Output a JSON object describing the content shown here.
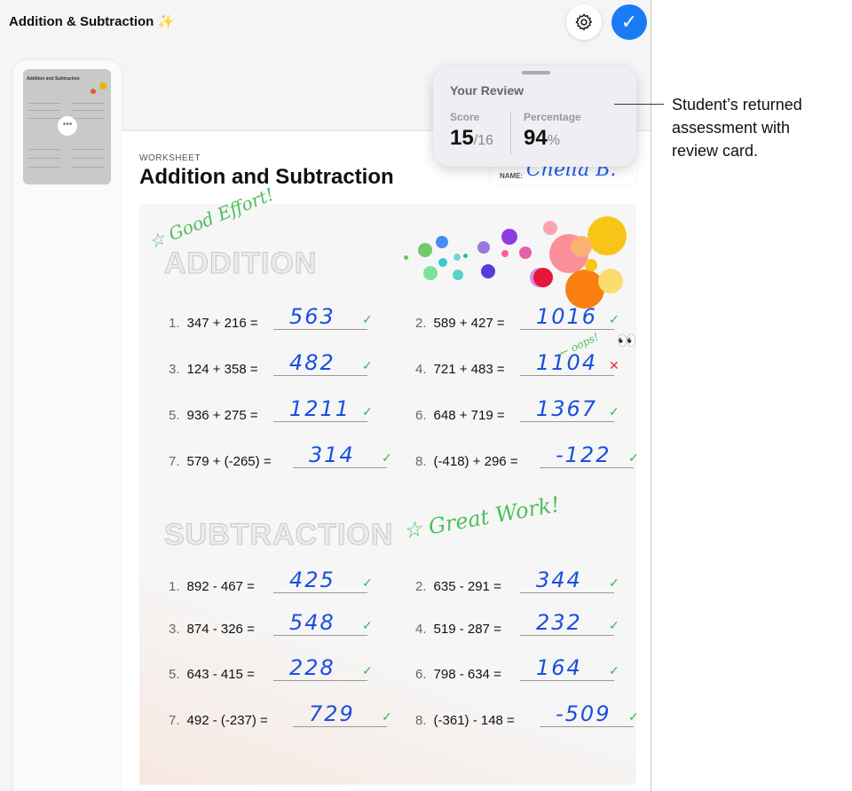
{
  "app": {
    "title": "Addition & Subtraction ✨",
    "settings_icon": "gear-icon",
    "done_icon": "checkmark-icon",
    "accent": "#1a7cf5"
  },
  "sidebar": {
    "thumbnail_title": "Addition and Subtraction",
    "more_label": "•••"
  },
  "worksheet": {
    "label": "WORKSHEET",
    "title": "Addition and Subtraction",
    "name_label": "NAME:",
    "name_value": "Chella B.",
    "addition_heading": "ADDITION",
    "subtraction_heading": "SUBTRACTION",
    "notes": {
      "good_effort": "☆ Good Effort!",
      "great_work": "☆ Great Work!",
      "oops": "← oops!",
      "eyes": "👀"
    },
    "addition": [
      {
        "n": "1.",
        "q": "347 + 216 =",
        "a": "563",
        "correct": true
      },
      {
        "n": "2.",
        "q": "589 + 427 =",
        "a": "1016",
        "correct": true
      },
      {
        "n": "3.",
        "q": "124 + 358 =",
        "a": "482",
        "correct": true
      },
      {
        "n": "4.",
        "q": "721 + 483 =",
        "a": "1104",
        "correct": false
      },
      {
        "n": "5.",
        "q": "936 + 275 =",
        "a": "1211",
        "correct": true
      },
      {
        "n": "6.",
        "q": "648 + 719 =",
        "a": "1367",
        "correct": true
      },
      {
        "n": "7.",
        "q": "579 + (-265) =",
        "a": "314",
        "correct": true
      },
      {
        "n": "8.",
        "q": "(-418) + 296 =",
        "a": "-122",
        "correct": true
      }
    ],
    "subtraction": [
      {
        "n": "1.",
        "q": "892 - 467 =",
        "a": "425",
        "correct": true
      },
      {
        "n": "2.",
        "q": "635 - 291 =",
        "a": "344",
        "correct": true
      },
      {
        "n": "3.",
        "q": "874 - 326 =",
        "a": "548",
        "correct": true
      },
      {
        "n": "4.",
        "q": "519 - 287 =",
        "a": "232",
        "correct": true
      },
      {
        "n": "5.",
        "q": "643 - 415 =",
        "a": "228",
        "correct": true
      },
      {
        "n": "6.",
        "q": "798 - 634 =",
        "a": "164",
        "correct": true
      },
      {
        "n": "7.",
        "q": "492 - (-237) =",
        "a": "729",
        "correct": true
      },
      {
        "n": "8.",
        "q": "(-361) - 148 =",
        "a": "-509",
        "correct": true
      }
    ]
  },
  "review": {
    "title": "Your Review",
    "score_label": "Score",
    "score": "15",
    "score_total": "/16",
    "percentage_label": "Percentage",
    "percentage": "94",
    "percent_sign": "%"
  },
  "callout": "Student’s returned assessment with review card."
}
